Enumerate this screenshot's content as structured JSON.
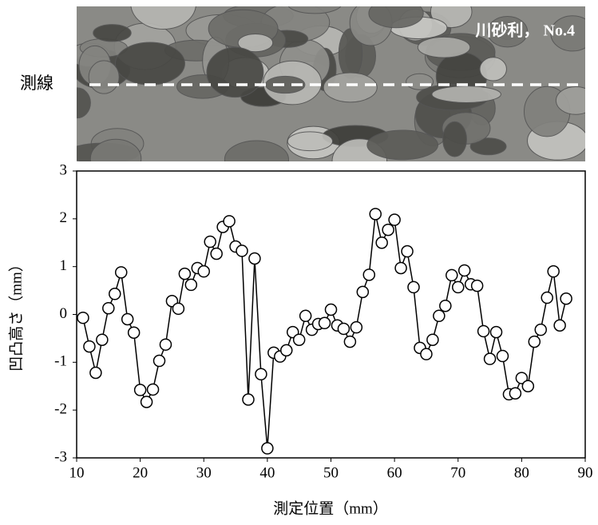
{
  "photo": {
    "label": "川砂利， No.4",
    "line_label": "測線"
  },
  "chart_data": {
    "type": "line",
    "x_label": "測定位置（mm）",
    "y_label": "凹凸高さ（mm）",
    "x": [
      11,
      12,
      13,
      14,
      15,
      16,
      17,
      18,
      19,
      20,
      21,
      22,
      23,
      24,
      25,
      26,
      27,
      28,
      29,
      30,
      31,
      32,
      33,
      34,
      35,
      36,
      37,
      38,
      39,
      40,
      41,
      42,
      43,
      44,
      45,
      46,
      47,
      48,
      49,
      50,
      51,
      52,
      53,
      54,
      55,
      56,
      57,
      58,
      59,
      60,
      61,
      62,
      63,
      64,
      65,
      66,
      67,
      68,
      69,
      70,
      71,
      72,
      73,
      74,
      75,
      76,
      77,
      78,
      79,
      80,
      81,
      82,
      83,
      84,
      85,
      86,
      87
    ],
    "series": [
      {
        "name": "凹凸高さ",
        "color": "#000000",
        "values": [
          -0.07,
          -0.67,
          -1.22,
          -0.53,
          0.13,
          0.43,
          0.88,
          -0.1,
          -0.38,
          -1.58,
          -1.83,
          -1.57,
          -0.97,
          -0.63,
          0.28,
          0.12,
          0.85,
          0.62,
          0.97,
          0.9,
          1.52,
          1.27,
          1.83,
          1.95,
          1.42,
          1.33,
          -1.78,
          1.17,
          -1.25,
          -2.8,
          -0.8,
          -0.88,
          -0.75,
          -0.37,
          -0.53,
          -0.03,
          -0.32,
          -0.2,
          -0.18,
          0.1,
          -0.23,
          -0.3,
          -0.57,
          -0.27,
          0.47,
          0.83,
          2.1,
          1.5,
          1.77,
          1.98,
          0.97,
          1.32,
          0.57,
          -0.7,
          -0.83,
          -0.53,
          -0.03,
          0.18,
          0.82,
          0.57,
          0.92,
          0.63,
          0.6,
          -0.35,
          -0.93,
          -0.37,
          -0.87,
          -1.67,
          -1.65,
          -1.33,
          -1.5,
          -0.57,
          -0.32,
          0.35,
          0.9,
          -0.23,
          0.33
        ]
      }
    ],
    "xlim": [
      10,
      90
    ],
    "ylim": [
      -3,
      3
    ],
    "xticks": [
      10,
      20,
      30,
      40,
      50,
      60,
      70,
      80,
      90
    ],
    "yticks": [
      -3,
      -2,
      -1,
      0,
      1,
      2,
      3
    ]
  }
}
